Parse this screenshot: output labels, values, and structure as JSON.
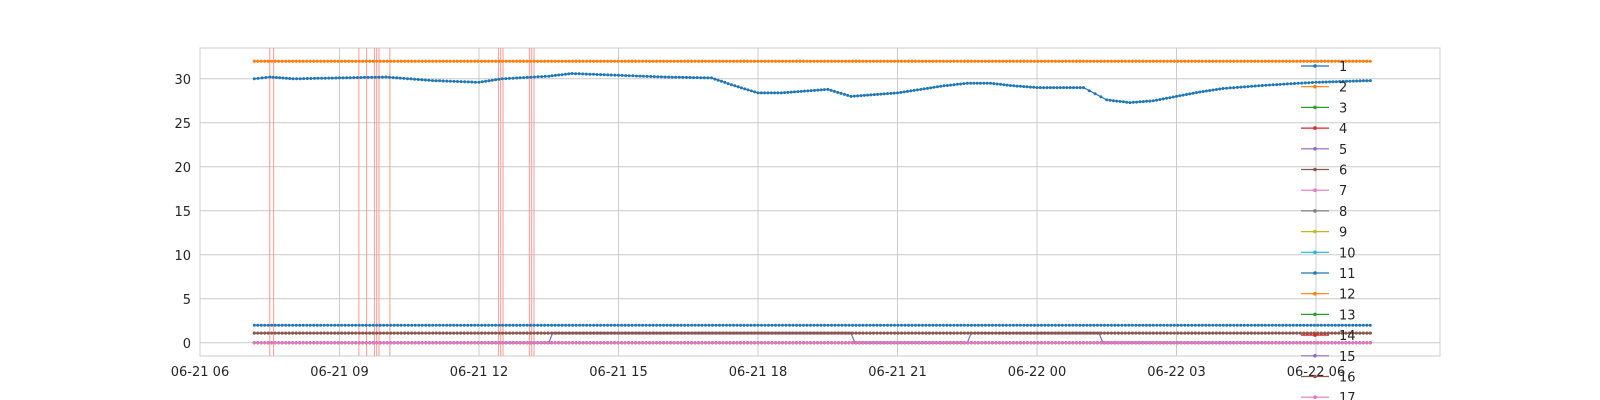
{
  "chart_data": {
    "type": "line",
    "title": "",
    "xlabel": "",
    "ylabel": "",
    "x_start": "2023-06-21 07:10",
    "x_end": "2023-06-22 07:10",
    "xlim": [
      "2023-06-21 06:00",
      "2023-06-22 08:40"
    ],
    "ylim": [
      -1.5,
      33.5
    ],
    "x_ticks": [
      "06-21 06",
      "06-21 09",
      "06-21 12",
      "06-21 15",
      "06-21 18",
      "06-21 21",
      "06-22 00",
      "06-22 03",
      "06-22 06"
    ],
    "x_tick_values": [
      "2023-06-21 06:00",
      "2023-06-21 09:00",
      "2023-06-21 12:00",
      "2023-06-21 15:00",
      "2023-06-21 18:00",
      "2023-06-21 21:00",
      "2023-06-22 00:00",
      "2023-06-22 03:00",
      "2023-06-22 06:00"
    ],
    "y_ticks": [
      "0",
      "5",
      "10",
      "15",
      "20",
      "25",
      "30"
    ],
    "y_tick_values": [
      0,
      5,
      10,
      15,
      20,
      25,
      30
    ],
    "grid": true,
    "legend_position": "right",
    "highlight_color": "#ff9896",
    "highlight_times": [
      "2023-06-21 07:30",
      "2023-06-21 07:35",
      "2023-06-21 09:25",
      "2023-06-21 09:35",
      "2023-06-21 09:45",
      "2023-06-21 09:48",
      "2023-06-21 09:51",
      "2023-06-21 10:05",
      "2023-06-21 12:25",
      "2023-06-21 12:28",
      "2023-06-21 12:31",
      "2023-06-21 13:05",
      "2023-06-21 13:08",
      "2023-06-21 13:11"
    ],
    "series": [
      {
        "name": "1",
        "color": "#1f77b4",
        "points": [
          [
            "2023-06-21 07:10",
            30.0
          ],
          [
            "2023-06-21 07:30",
            30.2
          ],
          [
            "2023-06-21 08:00",
            30.0
          ],
          [
            "2023-06-21 09:00",
            30.1
          ],
          [
            "2023-06-21 10:00",
            30.2
          ],
          [
            "2023-06-21 11:00",
            29.8
          ],
          [
            "2023-06-21 12:00",
            29.6
          ],
          [
            "2023-06-21 12:30",
            30.0
          ],
          [
            "2023-06-21 13:30",
            30.3
          ],
          [
            "2023-06-21 14:00",
            30.6
          ],
          [
            "2023-06-21 15:00",
            30.4
          ],
          [
            "2023-06-21 16:00",
            30.2
          ],
          [
            "2023-06-21 17:00",
            30.1
          ],
          [
            "2023-06-21 17:30",
            29.2
          ],
          [
            "2023-06-21 18:00",
            28.4
          ],
          [
            "2023-06-21 18:30",
            28.4
          ],
          [
            "2023-06-21 19:00",
            28.6
          ],
          [
            "2023-06-21 19:30",
            28.8
          ],
          [
            "2023-06-21 20:00",
            28.0
          ],
          [
            "2023-06-21 20:30",
            28.2
          ],
          [
            "2023-06-21 21:00",
            28.4
          ],
          [
            "2023-06-21 21:30",
            28.8
          ],
          [
            "2023-06-21 22:00",
            29.2
          ],
          [
            "2023-06-21 22:30",
            29.5
          ],
          [
            "2023-06-21 23:00",
            29.5
          ],
          [
            "2023-06-21 23:30",
            29.2
          ],
          [
            "2023-06-22 00:00",
            29.0
          ],
          [
            "2023-06-22 00:30",
            29.0
          ],
          [
            "2023-06-22 01:00",
            29.0
          ],
          [
            "2023-06-22 01:30",
            27.6
          ],
          [
            "2023-06-22 02:00",
            27.3
          ],
          [
            "2023-06-22 02:30",
            27.5
          ],
          [
            "2023-06-22 03:00",
            28.0
          ],
          [
            "2023-06-22 03:30",
            28.5
          ],
          [
            "2023-06-22 04:00",
            28.9
          ],
          [
            "2023-06-22 05:00",
            29.3
          ],
          [
            "2023-06-22 06:00",
            29.6
          ],
          [
            "2023-06-22 07:10",
            29.8
          ]
        ]
      },
      {
        "name": "2",
        "color": "#ff7f0e",
        "points": [
          [
            "2023-06-21 07:10",
            32.0
          ],
          [
            "2023-06-22 07:10",
            32.0
          ]
        ]
      },
      {
        "name": "3",
        "color": "#2ca02c",
        "points": [
          [
            "2023-06-21 07:10",
            0.0
          ],
          [
            "2023-06-22 07:10",
            0.0
          ]
        ]
      },
      {
        "name": "4",
        "color": "#d62728",
        "points": [
          [
            "2023-06-21 07:10",
            0.0
          ],
          [
            "2023-06-22 07:10",
            0.0
          ]
        ]
      },
      {
        "name": "5",
        "color": "#9467bd",
        "points": [
          [
            "2023-06-21 07:10",
            0.0
          ],
          [
            "2023-06-21 13:30",
            0.0
          ],
          [
            "2023-06-21 13:35",
            1.1
          ],
          [
            "2023-06-21 20:00",
            1.1
          ],
          [
            "2023-06-21 20:05",
            0.0
          ],
          [
            "2023-06-21 22:30",
            0.0
          ],
          [
            "2023-06-21 22:35",
            1.1
          ],
          [
            "2023-06-22 01:20",
            1.1
          ],
          [
            "2023-06-22 01:25",
            0.0
          ],
          [
            "2023-06-22 07:10",
            0.0
          ]
        ]
      },
      {
        "name": "6",
        "color": "#8c564b",
        "points": [
          [
            "2023-06-21 07:10",
            1.1
          ],
          [
            "2023-06-22 07:10",
            1.1
          ]
        ]
      },
      {
        "name": "7",
        "color": "#e377c2",
        "points": [
          [
            "2023-06-21 07:10",
            0.0
          ],
          [
            "2023-06-22 07:10",
            0.0
          ]
        ]
      },
      {
        "name": "8",
        "color": "#7f7f7f",
        "points": [
          [
            "2023-06-21 07:10",
            1.1
          ],
          [
            "2023-06-22 07:10",
            1.1
          ]
        ]
      },
      {
        "name": "9",
        "color": "#bcbd22",
        "points": [
          [
            "2023-06-21 07:10",
            0.0
          ],
          [
            "2023-06-22 07:10",
            0.0
          ]
        ]
      },
      {
        "name": "10",
        "color": "#17becf",
        "points": [
          [
            "2023-06-21 07:10",
            0.0
          ],
          [
            "2023-06-22 07:10",
            0.0
          ]
        ]
      },
      {
        "name": "11",
        "color": "#1f77b4",
        "points": [
          [
            "2023-06-21 07:10",
            2.0
          ],
          [
            "2023-06-22 07:10",
            2.0
          ]
        ]
      },
      {
        "name": "12",
        "color": "#ff7f0e",
        "points": [
          [
            "2023-06-21 07:10",
            32.0
          ],
          [
            "2023-06-22 07:10",
            32.0
          ]
        ]
      },
      {
        "name": "13",
        "color": "#2ca02c",
        "points": [
          [
            "2023-06-21 07:10",
            0.0
          ],
          [
            "2023-06-22 07:10",
            0.0
          ]
        ]
      },
      {
        "name": "14",
        "color": "#d62728",
        "points": [
          [
            "2023-06-21 07:10",
            0.0
          ],
          [
            "2023-06-22 07:10",
            0.0
          ]
        ]
      },
      {
        "name": "15",
        "color": "#9467bd",
        "points": [
          [
            "2023-06-21 07:10",
            0.0
          ],
          [
            "2023-06-22 07:10",
            0.0
          ]
        ]
      },
      {
        "name": "16",
        "color": "#8c564b",
        "points": [
          [
            "2023-06-21 07:10",
            1.1
          ],
          [
            "2023-06-22 07:10",
            1.1
          ]
        ]
      },
      {
        "name": "17",
        "color": "#e377c2",
        "points": [
          [
            "2023-06-21 07:10",
            0.0
          ],
          [
            "2023-06-22 07:10",
            0.0
          ]
        ]
      }
    ]
  }
}
